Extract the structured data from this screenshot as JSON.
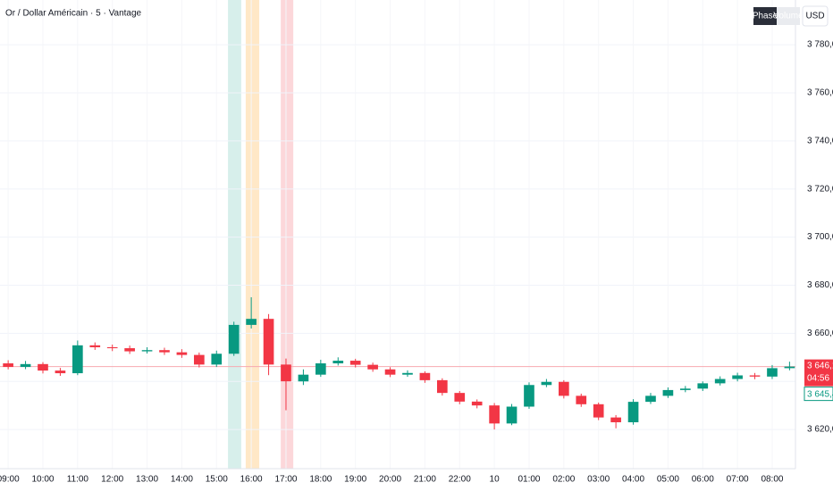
{
  "chart_data": {
    "type": "candlestick",
    "title": "Or / Dollar Américain · 5 · Vantage",
    "buttons": [
      "Phase",
      "Volume",
      "USD"
    ],
    "up_color": "#089981",
    "down_color": "#f23645",
    "x": [
      0,
      0.5,
      1,
      1.5,
      2,
      2.5,
      3,
      3.5,
      4,
      4.5,
      5,
      5.5,
      6,
      6.5,
      7,
      7.5,
      8,
      8.5,
      9,
      9.5,
      10,
      10.5,
      11,
      11.5,
      12,
      12.5,
      13,
      13.5,
      14,
      14.5,
      15,
      15.5,
      16,
      16.5,
      17,
      17.5,
      18,
      18.5,
      19,
      19.5,
      20,
      20.5,
      21,
      21.5,
      22,
      22.5
    ],
    "open": [
      3647.5,
      3646.0,
      3647.2,
      3644.5,
      3643.4,
      3655.0,
      3654.2,
      3653.8,
      3652.5,
      3653.0,
      3652.1,
      3651.0,
      3647.0,
      3651.5,
      3663.5,
      3666.0,
      3647.0,
      3640.0,
      3642.8,
      3647.5,
      3648.6,
      3646.9,
      3645.0,
      3642.8,
      3643.5,
      3640.5,
      3635.2,
      3631.6,
      3630.0,
      3622.5,
      3629.5,
      3638.5,
      3639.8,
      3634.0,
      3630.5,
      3625.0,
      3623.0,
      3631.5,
      3634.0,
      3636.4,
      3637.0,
      3639.2,
      3641.0,
      3642.5,
      3642.0,
      3645.5
    ],
    "high": [
      3648.8,
      3648.5,
      3648.0,
      3645.6,
      3657.0,
      3656.2,
      3655.3,
      3654.9,
      3654.2,
      3654.0,
      3653.4,
      3652.0,
      3652.8,
      3664.8,
      3675.0,
      3668.0,
      3649.5,
      3645.0,
      3649.0,
      3650.0,
      3649.4,
      3647.8,
      3645.9,
      3644.6,
      3644.2,
      3641.3,
      3636.0,
      3632.5,
      3631.0,
      3630.6,
      3639.6,
      3641.0,
      3640.5,
      3634.9,
      3631.2,
      3626.0,
      3632.6,
      3635.2,
      3637.5,
      3638.1,
      3640.0,
      3642.1,
      3643.6,
      3643.5,
      3646.8,
      3648.2
    ],
    "low": [
      3645.0,
      3645.1,
      3643.3,
      3642.3,
      3642.6,
      3653.1,
      3652.6,
      3651.4,
      3651.6,
      3651.0,
      3649.8,
      3645.8,
      3646.0,
      3650.6,
      3662.0,
      3642.6,
      3628.0,
      3638.5,
      3641.9,
      3646.6,
      3645.8,
      3644.0,
      3641.8,
      3641.9,
      3639.4,
      3634.1,
      3630.5,
      3628.8,
      3620.0,
      3621.8,
      3628.6,
      3637.6,
      3632.9,
      3629.4,
      3623.9,
      3620.5,
      3622.0,
      3630.6,
      3633.1,
      3635.5,
      3636.0,
      3638.3,
      3640.0,
      3640.9,
      3641.0,
      3644.6
    ],
    "close": [
      3646.0,
      3647.2,
      3644.5,
      3643.4,
      3655.0,
      3654.2,
      3653.8,
      3652.5,
      3653.0,
      3652.1,
      3651.0,
      3647.0,
      3651.5,
      3663.5,
      3666.0,
      3647.0,
      3640.0,
      3642.8,
      3647.5,
      3648.6,
      3646.9,
      3645.0,
      3642.8,
      3643.5,
      3640.5,
      3635.2,
      3631.6,
      3630.0,
      3622.5,
      3629.5,
      3638.5,
      3639.8,
      3634.0,
      3630.5,
      3625.0,
      3623.0,
      3631.5,
      3634.0,
      3636.4,
      3637.0,
      3639.2,
      3641.0,
      3642.5,
      3642.0,
      3645.5,
      3646.16
    ],
    "xlim": [
      -0.235,
      22.67
    ],
    "xticks": [
      {
        "value": 0,
        "label": "09:00"
      },
      {
        "value": 1,
        "label": "10:00"
      },
      {
        "value": 2,
        "label": "11:00"
      },
      {
        "value": 3,
        "label": "12:00"
      },
      {
        "value": 4,
        "label": "13:00"
      },
      {
        "value": 5,
        "label": "14:00"
      },
      {
        "value": 6,
        "label": "15:00"
      },
      {
        "value": 7,
        "label": "16:00"
      },
      {
        "value": 8,
        "label": "17:00"
      },
      {
        "value": 9,
        "label": "18:00"
      },
      {
        "value": 10,
        "label": "19:00"
      },
      {
        "value": 11,
        "label": "20:00"
      },
      {
        "value": 12,
        "label": "21:00"
      },
      {
        "value": 13,
        "label": "22:00"
      },
      {
        "value": 14,
        "label": "10"
      },
      {
        "value": 15,
        "label": "01:00"
      },
      {
        "value": 16,
        "label": "02:00"
      },
      {
        "value": 17,
        "label": "03:00"
      },
      {
        "value": 18,
        "label": "04:00"
      },
      {
        "value": 19,
        "label": "05:00"
      },
      {
        "value": 20,
        "label": "06:00"
      },
      {
        "value": 21,
        "label": "07:00"
      },
      {
        "value": 22,
        "label": "08:00"
      }
    ],
    "ylim": [
      3603.7,
      3798.6
    ],
    "yticks": [
      {
        "value": 3620,
        "label": "3 620,00"
      },
      {
        "value": 3640,
        "label": "3 640,00"
      },
      {
        "value": 3660,
        "label": "3 660,00"
      },
      {
        "value": 3680,
        "label": "3 680,00"
      },
      {
        "value": 3700,
        "label": "3 700,00"
      },
      {
        "value": 3720,
        "label": "3 720,00"
      },
      {
        "value": 3740,
        "label": "3 740,00"
      },
      {
        "value": 3760,
        "label": "3 760,00"
      },
      {
        "value": 3780,
        "label": "3 780,00"
      }
    ],
    "grid": true,
    "bands": [
      {
        "from": 6.33,
        "to": 6.71,
        "color": "rgba(8,153,129,0.16)"
      },
      {
        "from": 6.84,
        "to": 7.23,
        "color": "rgba(255,152,0,0.22)"
      },
      {
        "from": 7.85,
        "to": 8.21,
        "color": "rgba(242,54,69,0.2)"
      }
    ],
    "last_price": {
      "value": 3646.16,
      "label": "3 646,16",
      "countdown": "04:56"
    },
    "second_price": {
      "value": 3645.4,
      "label": "3 645,40"
    }
  }
}
